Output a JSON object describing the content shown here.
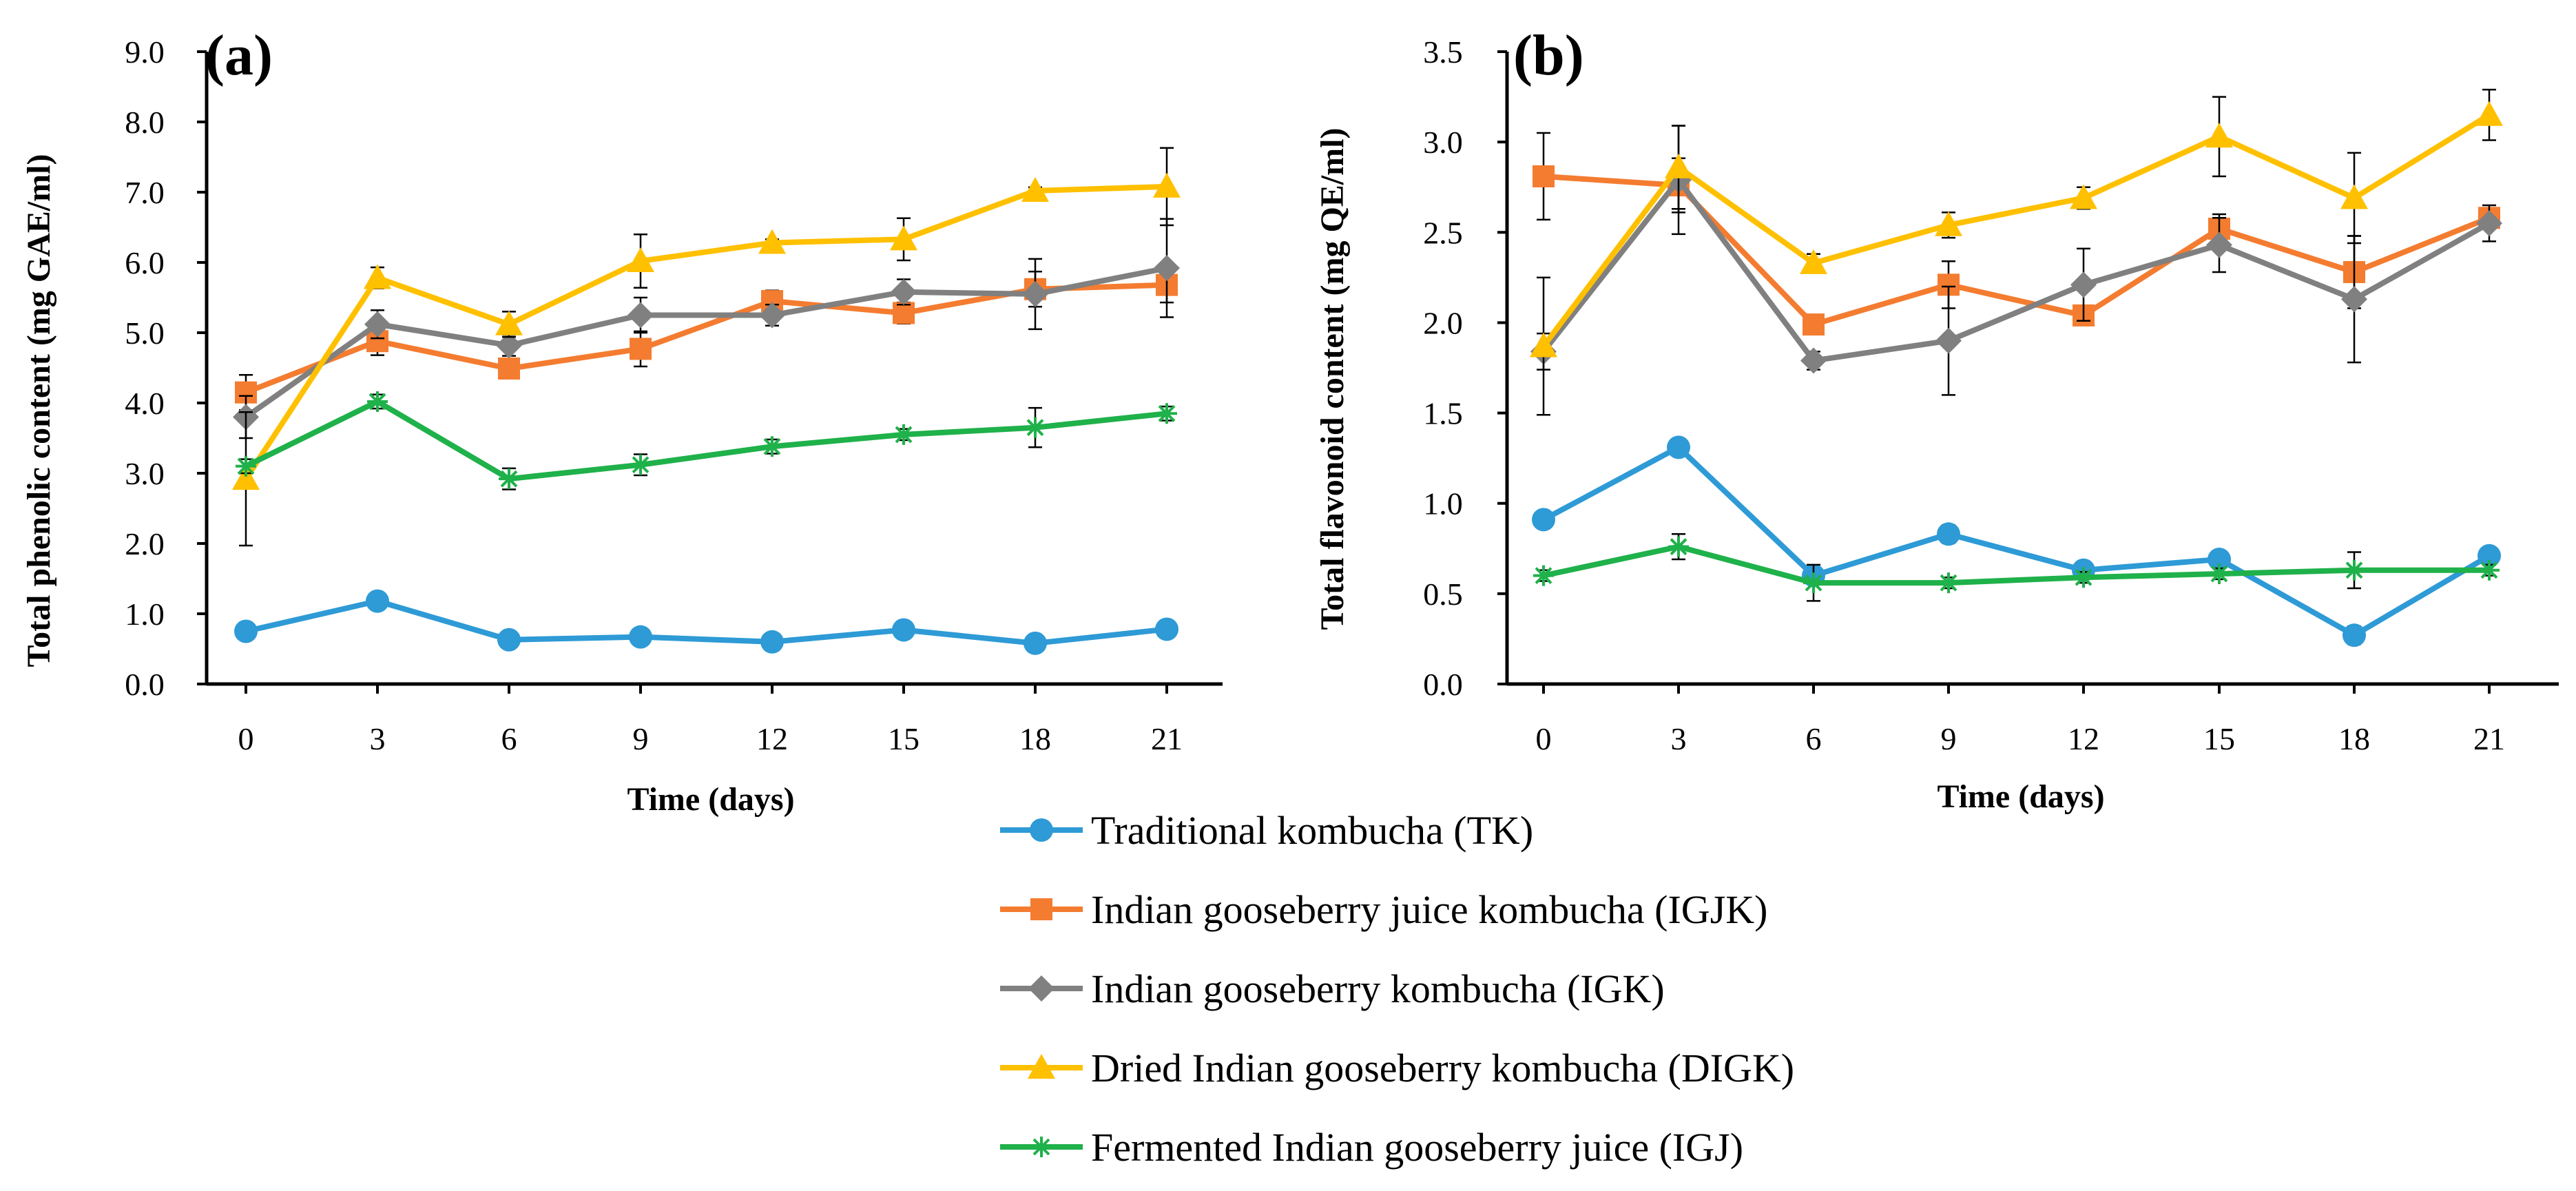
{
  "figure": {
    "panels": [
      "a",
      "b"
    ]
  },
  "series_styles": {
    "TK": {
      "color": "#2E9AD6",
      "marker": "circle"
    },
    "IGJK": {
      "color": "#F47C30",
      "marker": "square"
    },
    "IGK": {
      "color": "#808080",
      "marker": "diamond"
    },
    "DIGK": {
      "color": "#FFC000",
      "marker": "triangle"
    },
    "IGJ": {
      "color": "#1FB14A",
      "marker": "asterisk"
    }
  },
  "legend": [
    {
      "key": "TK",
      "label": "Traditional kombucha (TK)"
    },
    {
      "key": "IGJK",
      "label": "Indian gooseberry juice kombucha (IGJK)"
    },
    {
      "key": "IGK",
      "label": "Indian gooseberry kombucha (IGK)"
    },
    {
      "key": "DIGK",
      "label": "Dried Indian gooseberry kombucha (DIGK)"
    },
    {
      "key": "IGJ",
      "label": "Fermented Indian gooseberry juice  (IGJ)"
    }
  ],
  "chart_data": [
    {
      "type": "line",
      "panel_label": "(a)",
      "title": "",
      "xlabel": "Time (days)",
      "ylabel": "Total phenolic content (mg GAE/ml)",
      "x": [
        0,
        3,
        6,
        9,
        12,
        15,
        18,
        21
      ],
      "ylim": [
        0,
        9
      ],
      "ytick_step": 1,
      "yticks": [
        "0.0",
        "1.0",
        "2.0",
        "3.0",
        "4.0",
        "5.0",
        "6.0",
        "7.0",
        "8.0",
        "9.0"
      ],
      "xticks": [
        "0",
        "3",
        "6",
        "9",
        "12",
        "15",
        "18",
        "21"
      ],
      "series": [
        {
          "key": "TK",
          "name": "Traditional kombucha (TK)",
          "values": [
            0.75,
            1.18,
            0.63,
            0.67,
            0.6,
            0.77,
            0.58,
            0.78
          ],
          "errors": [
            0.05,
            0.06,
            0.04,
            0.05,
            0.04,
            0.05,
            0.04,
            0.05
          ]
        },
        {
          "key": "IGJK",
          "name": "Indian gooseberry juice kombucha (IGJK)",
          "values": [
            4.15,
            4.88,
            4.49,
            4.77,
            5.45,
            5.28,
            5.62,
            5.68
          ],
          "errors": [
            0.25,
            0.2,
            0.12,
            0.25,
            0.15,
            0.15,
            0.25,
            0.25
          ]
        },
        {
          "key": "IGK",
          "name": "Indian gooseberry kombucha (IGK)",
          "values": [
            3.8,
            5.12,
            4.82,
            5.25,
            5.25,
            5.58,
            5.55,
            5.92
          ],
          "errors": [
            0.3,
            0.2,
            0.15,
            0.25,
            0.15,
            0.18,
            0.5,
            0.7
          ]
        },
        {
          "key": "DIGK",
          "name": "Dried Indian gooseberry kombucha (DIGK)",
          "values": [
            2.92,
            5.78,
            5.12,
            6.02,
            6.28,
            6.33,
            7.02,
            7.08
          ],
          "errors": [
            0.95,
            0.15,
            0.18,
            0.38,
            0.05,
            0.3,
            0.05,
            0.55
          ]
        },
        {
          "key": "IGJ",
          "name": "Fermented Indian gooseberry juice  (IGJ)",
          "values": [
            3.1,
            4.02,
            2.92,
            3.12,
            3.38,
            3.55,
            3.65,
            3.85
          ],
          "errors": [
            0.1,
            0.1,
            0.15,
            0.15,
            0.1,
            0.08,
            0.28,
            0.1
          ]
        }
      ]
    },
    {
      "type": "line",
      "panel_label": "(b)",
      "title": "",
      "xlabel": "Time (days)",
      "ylabel": "Total flavonoid content (mg QE/ml)",
      "x": [
        0,
        3,
        6,
        9,
        12,
        15,
        18,
        21
      ],
      "ylim": [
        0,
        3.5
      ],
      "ytick_step": 0.5,
      "yticks": [
        "0.0",
        "0.5",
        "1.0",
        "1.5",
        "2.0",
        "2.5",
        "3.0",
        "3.5"
      ],
      "xticks": [
        "0",
        "3",
        "6",
        "9",
        "12",
        "15",
        "18",
        "21"
      ],
      "series": [
        {
          "key": "TK",
          "name": "Traditional kombucha (TK)",
          "values": [
            0.91,
            1.31,
            0.6,
            0.83,
            0.63,
            0.69,
            0.27,
            0.71
          ],
          "errors": [
            0.03,
            0.04,
            0.03,
            0.05,
            0.03,
            0.03,
            0.05,
            0.03
          ]
        },
        {
          "key": "IGJK",
          "name": "Indian gooseberry juice kombucha (IGJK)",
          "values": [
            2.81,
            2.76,
            1.99,
            2.21,
            2.04,
            2.52,
            2.28,
            2.58
          ],
          "errors": [
            0.24,
            0.15,
            0.05,
            0.13,
            0.05,
            0.08,
            0.2,
            0.04
          ]
        },
        {
          "key": "IGK",
          "name": "Indian gooseberry kombucha (IGK)",
          "values": [
            1.84,
            2.79,
            1.79,
            1.9,
            2.21,
            2.43,
            2.13,
            2.55
          ],
          "errors": [
            0.1,
            0.3,
            0.05,
            0.3,
            0.2,
            0.15,
            0.35,
            0.1
          ]
        },
        {
          "key": "DIGK",
          "name": "Dried Indian gooseberry kombucha (DIGK)",
          "values": [
            1.87,
            2.86,
            2.33,
            2.54,
            2.69,
            3.03,
            2.69,
            3.15
          ],
          "errors": [
            0.38,
            0.23,
            0.05,
            0.07,
            0.06,
            0.22,
            0.25,
            0.14
          ]
        },
        {
          "key": "IGJ",
          "name": "Fermented Indian gooseberry juice  (IGJ)",
          "values": [
            0.6,
            0.76,
            0.56,
            0.56,
            0.59,
            0.61,
            0.63,
            0.63
          ],
          "errors": [
            0.03,
            0.07,
            0.1,
            0.03,
            0.03,
            0.03,
            0.1,
            0.03
          ]
        }
      ]
    }
  ]
}
